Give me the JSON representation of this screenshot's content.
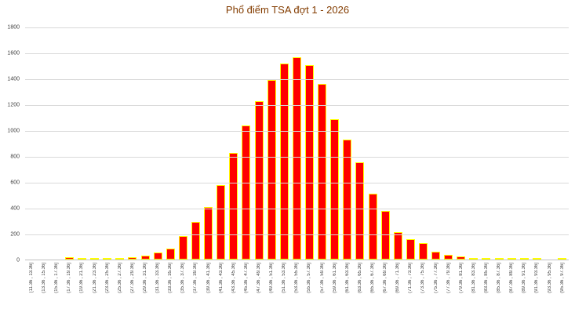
{
  "chart_data": {
    "type": "bar",
    "title": "Phổ điểm TSA đợt 1 - 2026",
    "xlabel": "",
    "ylabel": "",
    "ylim": [
      0,
      1800
    ],
    "y_ticks": [
      0,
      200,
      400,
      600,
      800,
      1000,
      1200,
      1400,
      1600,
      1800
    ],
    "grid": true,
    "legend": false,
    "categories": [
      "[11.36 , 13.36]",
      "(13.36 , 15.36]",
      "(15.36 , 17.36]",
      "(17.36 , 19.36]",
      "(19.36 , 21.36]",
      "(21.36 , 23.36]",
      "(23.36 , 25.36]",
      "(25.36 , 27.36]",
      "(27.36 , 29.36]",
      "(29.36 , 31.36]",
      "(31.36 , 33.36]",
      "(33.36 , 35.36]",
      "(35.36 , 37.36]",
      "(37.36 , 39.36]",
      "(39.36 , 41.36]",
      "(41.36 , 43.36]",
      "(43.36 , 45.36]",
      "(45.36 , 47.36]",
      "(47.36 , 49.36]",
      "(49.36 , 51.36]",
      "(51.36 , 53.36]",
      "(53.36 , 55.36]",
      "(55.36 , 57.36]",
      "(57.36 , 59.36]",
      "(59.36 , 61.36]",
      "(61.36 , 63.36]",
      "(63.36 , 65.36]",
      "(65.36 , 67.36]",
      "(67.36 , 69.36]",
      "(69.36 , 71.36]",
      "(71.36 , 73.36]",
      "(73.36 , 75.36]",
      "(75.36 , 77.36]",
      "(77.36 , 79.36]",
      "(79.36 , 81.36]",
      "(81.36 , 83.36]",
      "(83.36 , 85.36]",
      "(85.36 , 87.36]",
      "(87.36 , 89.36]",
      "(89.36 , 91.36]",
      "(91.36 , 93.36]",
      "(93.36 , 95.36]",
      "(95.36 , 97.36]"
    ],
    "values": [
      0,
      0,
      0,
      18,
      3,
      4,
      6,
      10,
      18,
      30,
      55,
      85,
      180,
      290,
      410,
      580,
      830,
      1040,
      1230,
      1390,
      1520,
      1570,
      1510,
      1360,
      1090,
      930,
      755,
      510,
      375,
      215,
      160,
      125,
      60,
      35,
      25,
      15,
      8,
      5,
      3,
      2,
      1,
      0,
      15
    ],
    "colors": {
      "bar_fill": "#FF0000",
      "bar_border": "#FFFF00",
      "title_color": "#833C00",
      "gridline_color": "#D9D9D9",
      "axis_line_color": "#BFBFBF",
      "tick_label_color": "#404040",
      "background": "#FFFFFF"
    }
  }
}
